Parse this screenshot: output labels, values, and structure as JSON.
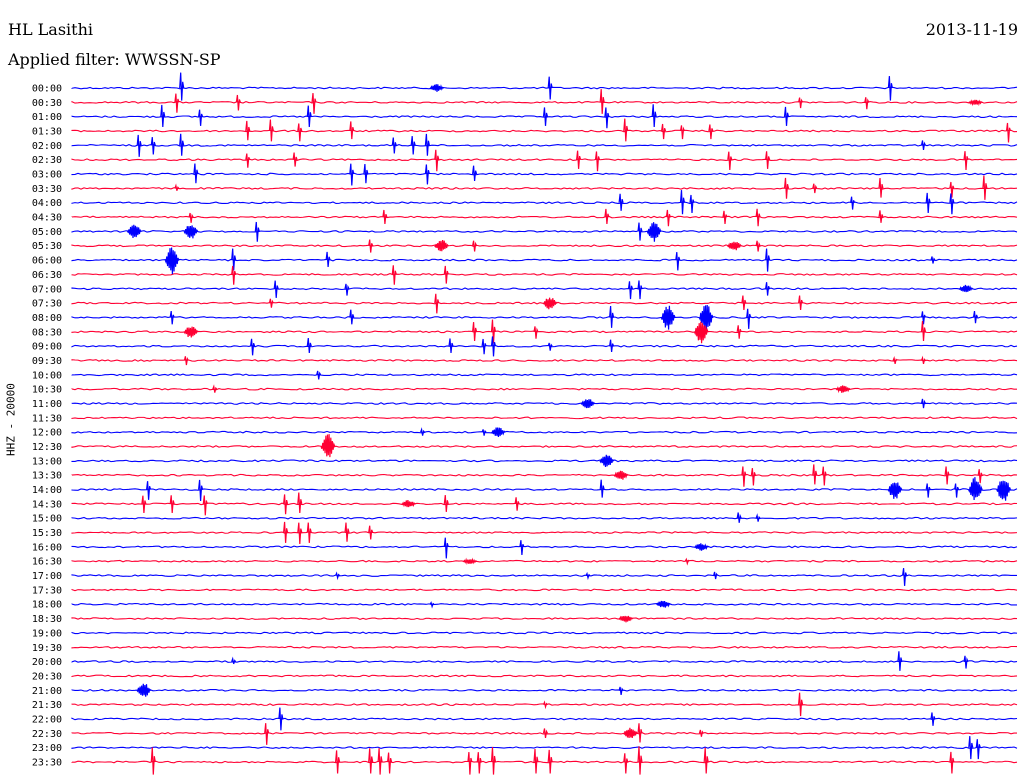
{
  "header": {
    "station": "HL Lasithi",
    "date": "2013-11-19",
    "filter": "Applied filter: WWSSN-SP"
  },
  "colors": {
    "even_trace": "#0000ff",
    "odd_trace": "#ff0033"
  },
  "chart_data": {
    "type": "line",
    "subtype": "helicorder",
    "ylabel": "HHZ - 20000",
    "grid": false,
    "rows": [
      "00:00",
      "00:30",
      "01:00",
      "01:30",
      "02:00",
      "02:30",
      "03:00",
      "03:30",
      "04:00",
      "04:30",
      "05:00",
      "05:30",
      "06:00",
      "06:30",
      "07:00",
      "07:30",
      "08:00",
      "08:30",
      "09:00",
      "09:30",
      "10:00",
      "10:30",
      "11:00",
      "11:30",
      "12:00",
      "12:30",
      "13:00",
      "13:30",
      "14:00",
      "14:30",
      "15:00",
      "15:30",
      "16:00",
      "16:30",
      "17:00",
      "17:30",
      "18:00",
      "18:30",
      "19:00",
      "19:30",
      "20:00",
      "20:30",
      "21:00",
      "21:30",
      "22:00",
      "22:30",
      "23:00",
      "23:30"
    ],
    "row_duration_minutes": 30,
    "events": [
      {
        "row": 0,
        "t": 0.115,
        "amp": 1.1
      },
      {
        "row": 0,
        "t": 0.385,
        "amp": 0.3,
        "burst": true
      },
      {
        "row": 0,
        "t": 0.505,
        "amp": 1.0
      },
      {
        "row": 0,
        "t": 0.865,
        "amp": 1.1
      },
      {
        "row": 1,
        "t": 0.11,
        "amp": 0.9
      },
      {
        "row": 1,
        "t": 0.175,
        "amp": 0.7
      },
      {
        "row": 1,
        "t": 0.255,
        "amp": 1.0
      },
      {
        "row": 1,
        "t": 0.56,
        "amp": 1.0
      },
      {
        "row": 1,
        "t": 0.77,
        "amp": 0.5
      },
      {
        "row": 1,
        "t": 0.84,
        "amp": 0.6
      },
      {
        "row": 1,
        "t": 0.955,
        "amp": 0.2,
        "burst": true
      },
      {
        "row": 2,
        "t": 0.095,
        "amp": 0.9
      },
      {
        "row": 2,
        "t": 0.135,
        "amp": 0.8
      },
      {
        "row": 2,
        "t": 0.25,
        "amp": 0.9
      },
      {
        "row": 2,
        "t": 0.5,
        "amp": 0.8
      },
      {
        "row": 2,
        "t": 0.565,
        "amp": 1.0
      },
      {
        "row": 2,
        "t": 0.615,
        "amp": 0.9
      },
      {
        "row": 2,
        "t": 0.755,
        "amp": 0.8
      },
      {
        "row": 3,
        "t": 0.185,
        "amp": 0.8
      },
      {
        "row": 3,
        "t": 0.21,
        "amp": 0.9
      },
      {
        "row": 3,
        "t": 0.24,
        "amp": 0.9
      },
      {
        "row": 3,
        "t": 0.295,
        "amp": 0.7
      },
      {
        "row": 3,
        "t": 0.585,
        "amp": 0.9
      },
      {
        "row": 3,
        "t": 0.625,
        "amp": 0.7
      },
      {
        "row": 3,
        "t": 0.645,
        "amp": 0.7
      },
      {
        "row": 3,
        "t": 0.675,
        "amp": 0.7
      },
      {
        "row": 3,
        "t": 0.99,
        "amp": 1.0
      },
      {
        "row": 4,
        "t": 0.07,
        "amp": 1.0
      },
      {
        "row": 4,
        "t": 0.085,
        "amp": 0.8
      },
      {
        "row": 4,
        "t": 0.115,
        "amp": 0.9
      },
      {
        "row": 4,
        "t": 0.34,
        "amp": 0.7
      },
      {
        "row": 4,
        "t": 0.36,
        "amp": 0.8
      },
      {
        "row": 4,
        "t": 0.375,
        "amp": 0.9
      },
      {
        "row": 4,
        "t": 0.9,
        "amp": 0.4
      },
      {
        "row": 5,
        "t": 0.185,
        "amp": 0.7
      },
      {
        "row": 5,
        "t": 0.235,
        "amp": 0.6
      },
      {
        "row": 5,
        "t": 0.385,
        "amp": 1.0
      },
      {
        "row": 5,
        "t": 0.535,
        "amp": 0.8
      },
      {
        "row": 5,
        "t": 0.555,
        "amp": 1.0
      },
      {
        "row": 5,
        "t": 0.695,
        "amp": 0.9
      },
      {
        "row": 5,
        "t": 0.735,
        "amp": 0.8
      },
      {
        "row": 5,
        "t": 0.945,
        "amp": 0.9
      },
      {
        "row": 6,
        "t": 0.13,
        "amp": 0.8
      },
      {
        "row": 6,
        "t": 0.295,
        "amp": 1.0
      },
      {
        "row": 6,
        "t": 0.31,
        "amp": 0.8
      },
      {
        "row": 6,
        "t": 0.375,
        "amp": 0.9
      },
      {
        "row": 6,
        "t": 0.425,
        "amp": 0.6
      },
      {
        "row": 7,
        "t": 0.11,
        "amp": 0.2
      },
      {
        "row": 7,
        "t": 0.755,
        "amp": 0.9
      },
      {
        "row": 7,
        "t": 0.785,
        "amp": 0.4
      },
      {
        "row": 7,
        "t": 0.855,
        "amp": 0.8
      },
      {
        "row": 7,
        "t": 0.93,
        "amp": 0.8
      },
      {
        "row": 7,
        "t": 0.965,
        "amp": 1.0
      },
      {
        "row": 8,
        "t": 0.58,
        "amp": 0.7
      },
      {
        "row": 8,
        "t": 0.645,
        "amp": 1.0
      },
      {
        "row": 8,
        "t": 0.655,
        "amp": 0.9
      },
      {
        "row": 8,
        "t": 0.825,
        "amp": 0.6
      },
      {
        "row": 8,
        "t": 0.905,
        "amp": 0.9
      },
      {
        "row": 8,
        "t": 0.93,
        "amp": 1.0
      },
      {
        "row": 9,
        "t": 0.125,
        "amp": 0.5
      },
      {
        "row": 9,
        "t": 0.33,
        "amp": 0.6
      },
      {
        "row": 9,
        "t": 0.565,
        "amp": 0.6
      },
      {
        "row": 9,
        "t": 0.63,
        "amp": 0.8
      },
      {
        "row": 9,
        "t": 0.69,
        "amp": 0.6
      },
      {
        "row": 9,
        "t": 0.725,
        "amp": 0.8
      },
      {
        "row": 9,
        "t": 0.855,
        "amp": 0.5
      },
      {
        "row": 10,
        "t": 0.065,
        "amp": 0.6,
        "burst": true
      },
      {
        "row": 10,
        "t": 0.125,
        "amp": 0.6,
        "burst": true
      },
      {
        "row": 10,
        "t": 0.195,
        "amp": 0.9
      },
      {
        "row": 10,
        "t": 0.6,
        "amp": 0.8
      },
      {
        "row": 10,
        "t": 0.615,
        "amp": 0.8,
        "burst": true
      },
      {
        "row": 11,
        "t": 0.315,
        "amp": 0.6
      },
      {
        "row": 11,
        "t": 0.39,
        "amp": 0.5,
        "burst": true
      },
      {
        "row": 11,
        "t": 0.425,
        "amp": 0.5
      },
      {
        "row": 11,
        "t": 0.7,
        "amp": 0.4,
        "burst": true
      },
      {
        "row": 11,
        "t": 0.725,
        "amp": 0.5
      },
      {
        "row": 12,
        "t": 0.105,
        "amp": 1.2,
        "burst": true
      },
      {
        "row": 12,
        "t": 0.17,
        "amp": 0.9
      },
      {
        "row": 12,
        "t": 0.27,
        "amp": 0.6
      },
      {
        "row": 12,
        "t": 0.64,
        "amp": 0.9
      },
      {
        "row": 12,
        "t": 0.735,
        "amp": 1.0
      },
      {
        "row": 12,
        "t": 0.91,
        "amp": 0.3
      },
      {
        "row": 13,
        "t": 0.17,
        "amp": 0.9
      },
      {
        "row": 13,
        "t": 0.34,
        "amp": 0.9
      },
      {
        "row": 13,
        "t": 0.395,
        "amp": 0.8
      },
      {
        "row": 14,
        "t": 0.215,
        "amp": 0.8
      },
      {
        "row": 14,
        "t": 0.29,
        "amp": 0.6
      },
      {
        "row": 14,
        "t": 0.59,
        "amp": 0.9
      },
      {
        "row": 14,
        "t": 0.6,
        "amp": 0.9
      },
      {
        "row": 14,
        "t": 0.735,
        "amp": 0.6
      },
      {
        "row": 14,
        "t": 0.945,
        "amp": 0.3,
        "burst": true
      },
      {
        "row": 15,
        "t": 0.21,
        "amp": 0.4
      },
      {
        "row": 15,
        "t": 0.385,
        "amp": 0.9
      },
      {
        "row": 15,
        "t": 0.505,
        "amp": 0.5,
        "burst": true
      },
      {
        "row": 15,
        "t": 0.71,
        "amp": 0.6
      },
      {
        "row": 15,
        "t": 0.77,
        "amp": 0.6
      },
      {
        "row": 16,
        "t": 0.105,
        "amp": 0.6
      },
      {
        "row": 16,
        "t": 0.295,
        "amp": 0.6
      },
      {
        "row": 16,
        "t": 0.57,
        "amp": 0.9
      },
      {
        "row": 16,
        "t": 0.63,
        "amp": 1.0,
        "burst": true
      },
      {
        "row": 16,
        "t": 0.67,
        "amp": 1.1,
        "burst": true
      },
      {
        "row": 16,
        "t": 0.715,
        "amp": 1.0
      },
      {
        "row": 16,
        "t": 0.9,
        "amp": 0.6
      },
      {
        "row": 16,
        "t": 0.955,
        "amp": 0.5
      },
      {
        "row": 17,
        "t": 0.125,
        "amp": 0.5,
        "burst": true
      },
      {
        "row": 17,
        "t": 0.425,
        "amp": 0.8
      },
      {
        "row": 17,
        "t": 0.445,
        "amp": 1.0
      },
      {
        "row": 17,
        "t": 0.49,
        "amp": 0.6
      },
      {
        "row": 17,
        "t": 0.665,
        "amp": 0.9,
        "burst": true
      },
      {
        "row": 17,
        "t": 0.705,
        "amp": 0.6
      },
      {
        "row": 17,
        "t": 0.9,
        "amp": 0.8
      },
      {
        "row": 18,
        "t": 0.19,
        "amp": 0.8
      },
      {
        "row": 18,
        "t": 0.25,
        "amp": 0.6
      },
      {
        "row": 18,
        "t": 0.4,
        "amp": 0.6
      },
      {
        "row": 18,
        "t": 0.435,
        "amp": 0.7
      },
      {
        "row": 18,
        "t": 0.445,
        "amp": 0.9
      },
      {
        "row": 18,
        "t": 0.505,
        "amp": 0.4
      },
      {
        "row": 18,
        "t": 0.57,
        "amp": 0.5
      },
      {
        "row": 19,
        "t": 0.12,
        "amp": 0.4
      },
      {
        "row": 19,
        "t": 0.87,
        "amp": 0.3
      },
      {
        "row": 19,
        "t": 0.9,
        "amp": 0.3
      },
      {
        "row": 20,
        "t": 0.26,
        "amp": 0.4
      },
      {
        "row": 21,
        "t": 0.15,
        "amp": 0.3
      },
      {
        "row": 21,
        "t": 0.815,
        "amp": 0.3,
        "burst": true
      },
      {
        "row": 22,
        "t": 0.545,
        "amp": 0.4,
        "burst": true
      },
      {
        "row": 22,
        "t": 0.9,
        "amp": 0.4
      },
      {
        "row": 24,
        "t": 0.37,
        "amp": 0.3
      },
      {
        "row": 24,
        "t": 0.435,
        "amp": 0.3
      },
      {
        "row": 24,
        "t": 0.45,
        "amp": 0.4,
        "burst": true
      },
      {
        "row": 25,
        "t": 0.27,
        "amp": 1.0,
        "burst": true
      },
      {
        "row": 26,
        "t": 0.565,
        "amp": 0.5,
        "burst": true
      },
      {
        "row": 27,
        "t": 0.58,
        "amp": 0.4,
        "burst": true
      },
      {
        "row": 27,
        "t": 0.71,
        "amp": 1.0
      },
      {
        "row": 27,
        "t": 0.72,
        "amp": 0.9
      },
      {
        "row": 27,
        "t": 0.785,
        "amp": 0.8
      },
      {
        "row": 27,
        "t": 0.795,
        "amp": 0.9
      },
      {
        "row": 27,
        "t": 0.925,
        "amp": 0.8
      },
      {
        "row": 27,
        "t": 0.96,
        "amp": 0.7
      },
      {
        "row": 28,
        "t": 0.08,
        "amp": 0.9
      },
      {
        "row": 28,
        "t": 0.135,
        "amp": 1.0
      },
      {
        "row": 28,
        "t": 0.56,
        "amp": 0.7
      },
      {
        "row": 28,
        "t": 0.87,
        "amp": 0.8,
        "burst": true
      },
      {
        "row": 28,
        "t": 0.905,
        "amp": 0.7
      },
      {
        "row": 28,
        "t": 0.935,
        "amp": 0.7
      },
      {
        "row": 28,
        "t": 0.955,
        "amp": 1.0,
        "burst": true
      },
      {
        "row": 28,
        "t": 0.985,
        "amp": 1.0,
        "burst": true
      },
      {
        "row": 29,
        "t": 0.075,
        "amp": 0.8
      },
      {
        "row": 29,
        "t": 0.105,
        "amp": 0.8
      },
      {
        "row": 29,
        "t": 0.14,
        "amp": 1.0
      },
      {
        "row": 29,
        "t": 0.225,
        "amp": 0.9
      },
      {
        "row": 29,
        "t": 0.24,
        "amp": 0.8
      },
      {
        "row": 29,
        "t": 0.355,
        "amp": 0.3,
        "burst": true
      },
      {
        "row": 29,
        "t": 0.395,
        "amp": 0.7
      },
      {
        "row": 29,
        "t": 0.47,
        "amp": 0.6
      },
      {
        "row": 30,
        "t": 0.705,
        "amp": 0.4
      },
      {
        "row": 30,
        "t": 0.725,
        "amp": 0.3
      },
      {
        "row": 31,
        "t": 0.225,
        "amp": 0.9
      },
      {
        "row": 31,
        "t": 0.24,
        "amp": 1.0
      },
      {
        "row": 31,
        "t": 0.25,
        "amp": 0.9
      },
      {
        "row": 31,
        "t": 0.29,
        "amp": 0.8
      },
      {
        "row": 31,
        "t": 0.315,
        "amp": 0.6
      },
      {
        "row": 32,
        "t": 0.395,
        "amp": 1.0
      },
      {
        "row": 32,
        "t": 0.475,
        "amp": 0.7
      },
      {
        "row": 32,
        "t": 0.665,
        "amp": 0.3,
        "burst": true
      },
      {
        "row": 33,
        "t": 0.42,
        "amp": 0.2,
        "burst": true
      },
      {
        "row": 33,
        "t": 0.65,
        "amp": 0.2
      },
      {
        "row": 34,
        "t": 0.28,
        "amp": 0.2
      },
      {
        "row": 34,
        "t": 0.545,
        "amp": 0.2
      },
      {
        "row": 34,
        "t": 0.68,
        "amp": 0.3
      },
      {
        "row": 34,
        "t": 0.88,
        "amp": 0.9
      },
      {
        "row": 36,
        "t": 0.38,
        "amp": 0.2
      },
      {
        "row": 36,
        "t": 0.625,
        "amp": 0.3,
        "burst": true
      },
      {
        "row": 37,
        "t": 0.585,
        "amp": 0.3,
        "burst": true
      },
      {
        "row": 40,
        "t": 0.17,
        "amp": 0.2
      },
      {
        "row": 40,
        "t": 0.875,
        "amp": 0.8
      },
      {
        "row": 40,
        "t": 0.945,
        "amp": 0.6
      },
      {
        "row": 42,
        "t": 0.075,
        "amp": 0.6,
        "burst": true
      },
      {
        "row": 42,
        "t": 0.58,
        "amp": 0.4
      },
      {
        "row": 43,
        "t": 0.5,
        "amp": 0.2
      },
      {
        "row": 43,
        "t": 0.77,
        "amp": 1.0
      },
      {
        "row": 44,
        "t": 0.22,
        "amp": 1.0
      },
      {
        "row": 44,
        "t": 0.91,
        "amp": 0.6
      },
      {
        "row": 45,
        "t": 0.205,
        "amp": 1.0
      },
      {
        "row": 45,
        "t": 0.5,
        "amp": 0.4
      },
      {
        "row": 45,
        "t": 0.59,
        "amp": 0.5,
        "burst": true
      },
      {
        "row": 45,
        "t": 0.6,
        "amp": 0.8
      },
      {
        "row": 45,
        "t": 0.665,
        "amp": 0.3
      },
      {
        "row": 46,
        "t": 0.95,
        "amp": 1.0
      },
      {
        "row": 46,
        "t": 0.958,
        "amp": 1.0
      },
      {
        "row": 47,
        "t": 0.085,
        "amp": 1.1
      },
      {
        "row": 47,
        "t": 0.28,
        "amp": 1.0
      },
      {
        "row": 47,
        "t": 0.315,
        "amp": 1.0
      },
      {
        "row": 47,
        "t": 0.325,
        "amp": 1.1
      },
      {
        "row": 47,
        "t": 0.335,
        "amp": 1.0
      },
      {
        "row": 47,
        "t": 0.42,
        "amp": 1.1
      },
      {
        "row": 47,
        "t": 0.43,
        "amp": 1.0
      },
      {
        "row": 47,
        "t": 0.445,
        "amp": 1.1
      },
      {
        "row": 47,
        "t": 0.49,
        "amp": 1.0
      },
      {
        "row": 47,
        "t": 0.505,
        "amp": 1.0
      },
      {
        "row": 47,
        "t": 0.585,
        "amp": 1.0
      },
      {
        "row": 47,
        "t": 0.6,
        "amp": 1.1
      },
      {
        "row": 47,
        "t": 0.67,
        "amp": 1.0
      },
      {
        "row": 47,
        "t": 0.93,
        "amp": 1.0
      }
    ]
  }
}
